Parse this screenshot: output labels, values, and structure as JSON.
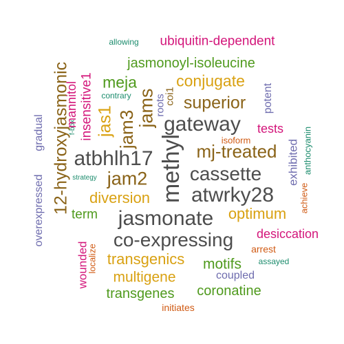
{
  "palette": {
    "green": "#4f9a1d",
    "gray": "#4d4d4d",
    "brown": "#8a6318",
    "orange": "#d05a13",
    "magenta": "#d3157a",
    "gold": "#d9a112",
    "teal": "#1c8c6d",
    "purple": "#6e6cae"
  },
  "words": [
    {
      "text": "allowing",
      "color": "teal"
    },
    {
      "text": "ubiquitin-dependent",
      "color": "magenta"
    },
    {
      "text": "jasmonoyl-isoleucine",
      "color": "green"
    },
    {
      "text": "meja",
      "color": "green"
    },
    {
      "text": "conjugate",
      "color": "gold"
    },
    {
      "text": "contrary",
      "color": "teal"
    },
    {
      "text": "superior",
      "color": "brown"
    },
    {
      "text": "gateway",
      "color": "gray"
    },
    {
      "text": "tests",
      "color": "magenta"
    },
    {
      "text": "isoform",
      "color": "orange"
    },
    {
      "text": "mj-treated",
      "color": "brown"
    },
    {
      "text": "atbhlh17",
      "color": "gray"
    },
    {
      "text": "cassette",
      "color": "gray"
    },
    {
      "text": "jam2",
      "color": "brown"
    },
    {
      "text": "strategy",
      "color": "teal"
    },
    {
      "text": "atwrky28",
      "color": "gray"
    },
    {
      "text": "diversion",
      "color": "gold"
    },
    {
      "text": "optimum",
      "color": "gold"
    },
    {
      "text": "term",
      "color": "green"
    },
    {
      "text": "jasmonate",
      "color": "gray"
    },
    {
      "text": "desiccation",
      "color": "magenta"
    },
    {
      "text": "co-expressing",
      "color": "gray"
    },
    {
      "text": "arrest",
      "color": "orange"
    },
    {
      "text": "transgenics",
      "color": "gold"
    },
    {
      "text": "motifs",
      "color": "green"
    },
    {
      "text": "assayed",
      "color": "teal"
    },
    {
      "text": "multigene",
      "color": "gold"
    },
    {
      "text": "coupled",
      "color": "purple"
    },
    {
      "text": "transgenes",
      "color": "green"
    },
    {
      "text": "coronatine",
      "color": "green"
    },
    {
      "text": "initiates",
      "color": "orange"
    },
    {
      "text": "12-hydroxyjasmonic",
      "color": "brown"
    },
    {
      "text": "gradual",
      "color": "purple"
    },
    {
      "text": "overexpressed",
      "color": "purple"
    },
    {
      "text": "f-box",
      "color": "teal"
    },
    {
      "text": "mannitol",
      "color": "magenta"
    },
    {
      "text": "insensitive1",
      "color": "magenta"
    },
    {
      "text": "jas1",
      "color": "gold"
    },
    {
      "text": "jam3",
      "color": "brown"
    },
    {
      "text": "jams",
      "color": "brown"
    },
    {
      "text": "roots",
      "color": "purple"
    },
    {
      "text": "coi1",
      "color": "brown"
    },
    {
      "text": "methyl",
      "color": "gray"
    },
    {
      "text": "potent",
      "color": "purple"
    },
    {
      "text": "anthocyanin",
      "color": "teal"
    },
    {
      "text": "exhibited",
      "color": "purple"
    },
    {
      "text": "achieve",
      "color": "orange"
    },
    {
      "text": "wounded",
      "color": "magenta"
    },
    {
      "text": "localize",
      "color": "orange"
    }
  ]
}
